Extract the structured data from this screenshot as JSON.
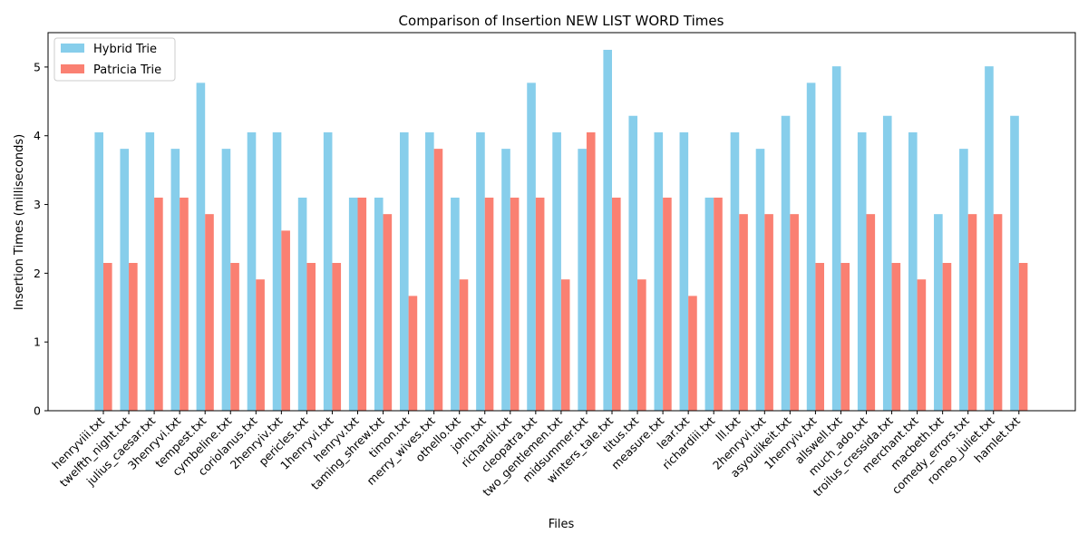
{
  "chart_data": {
    "type": "bar",
    "title": "Comparison of Insertion NEW LIST WORD Times",
    "xlabel": "Files",
    "ylabel": "Insertion Times (milliseconds)",
    "ylim": [
      0,
      5.5
    ],
    "yticks": [
      0,
      1,
      2,
      3,
      4,
      5
    ],
    "grid": false,
    "legend_position": "top-left",
    "categories": [
      "henryviii.txt",
      "twelfth_night.txt",
      "julius_caesar.txt",
      "3henryvi.txt",
      "tempest.txt",
      "cymbeline.txt",
      "coriolanus.txt",
      "2henryiv.txt",
      "pericles.txt",
      "1henryvi.txt",
      "henryv.txt",
      "taming_shrew.txt",
      "timon.txt",
      "merry_wives.txt",
      "othello.txt",
      "john.txt",
      "richardii.txt",
      "cleopatra.txt",
      "two_gentlemen.txt",
      "midsummer.txt",
      "winters_tale.txt",
      "titus.txt",
      "measure.txt",
      "lear.txt",
      "richardiii.txt",
      "lll.txt",
      "2henryvi.txt",
      "asyoulikeit.txt",
      "1henryiv.txt",
      "allswell.txt",
      "much_ado.txt",
      "troilus_cressida.txt",
      "merchant.txt",
      "macbeth.txt",
      "comedy_errors.txt",
      "romeo_juliet.txt",
      "hamlet.txt"
    ],
    "series": [
      {
        "name": "Hybrid Trie",
        "color": "#87ceeb",
        "values": [
          4.05,
          3.81,
          4.05,
          3.81,
          4.77,
          3.81,
          4.05,
          4.05,
          3.1,
          4.05,
          3.1,
          3.1,
          4.05,
          4.05,
          3.1,
          4.05,
          3.81,
          4.77,
          4.05,
          3.81,
          5.25,
          4.29,
          4.05,
          4.05,
          3.1,
          4.05,
          3.81,
          4.29,
          4.77,
          5.01,
          4.05,
          4.29,
          4.05,
          2.86,
          3.81,
          5.01,
          4.29
        ]
      },
      {
        "name": "Patricia Trie",
        "color": "#fa8072",
        "values": [
          2.15,
          2.15,
          3.1,
          3.1,
          2.86,
          2.15,
          1.91,
          2.62,
          2.15,
          2.15,
          3.1,
          2.86,
          1.67,
          3.81,
          1.91,
          3.1,
          3.1,
          3.1,
          1.91,
          4.05,
          3.1,
          1.91,
          3.1,
          1.67,
          3.1,
          2.86,
          2.86,
          2.86,
          2.15,
          2.15,
          2.86,
          2.15,
          1.91,
          2.15,
          2.86,
          2.86,
          2.15
        ]
      }
    ]
  }
}
